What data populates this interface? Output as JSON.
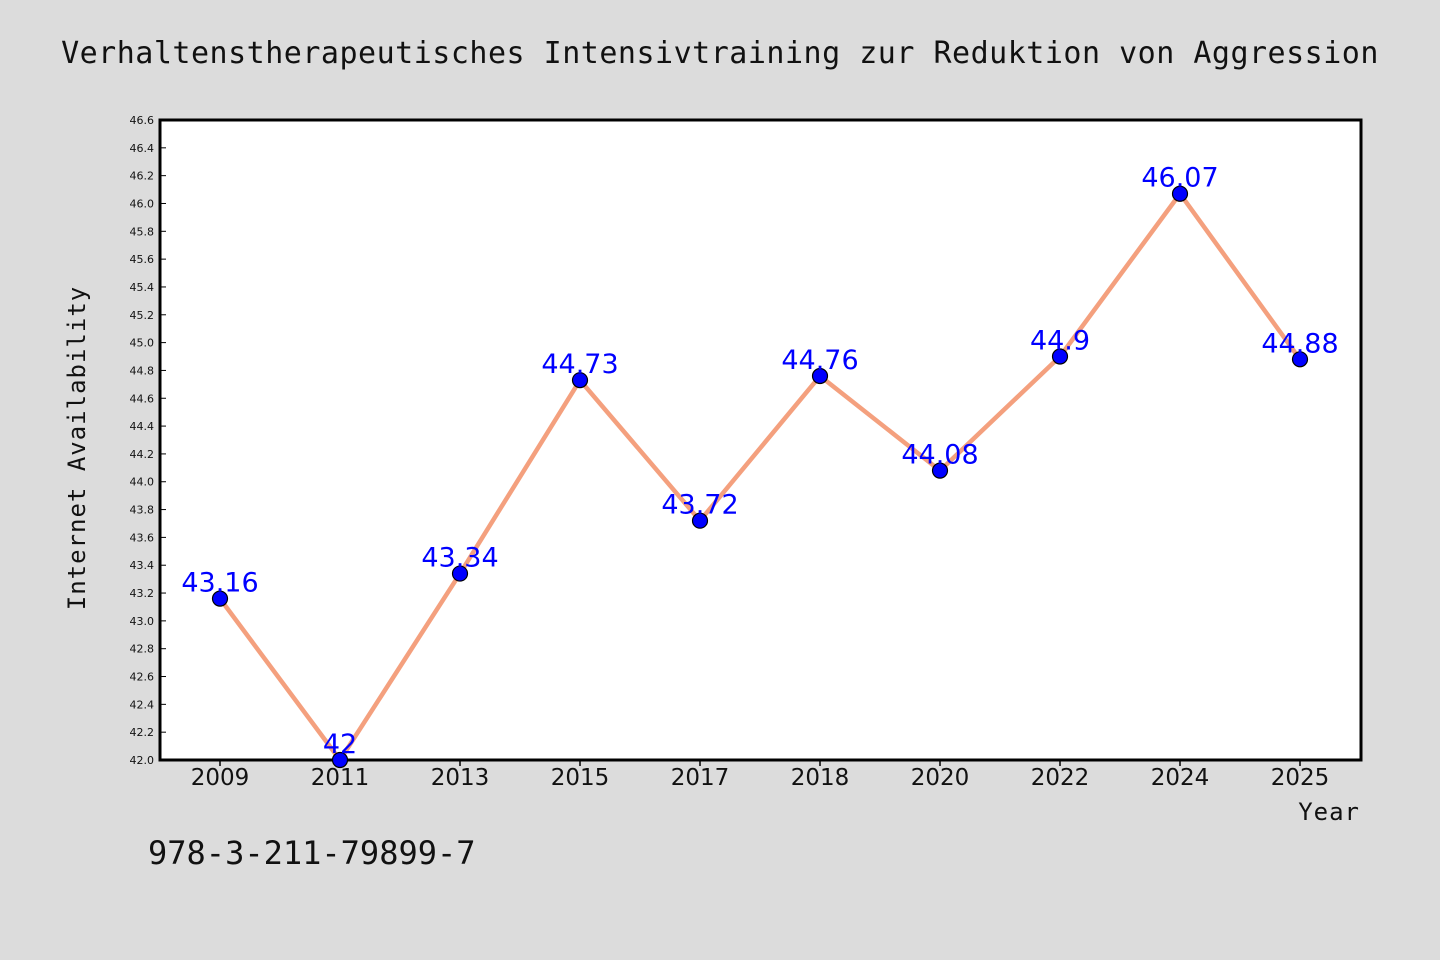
{
  "chart_data": {
    "type": "line",
    "title": "Verhaltenstherapeutisches Intensivtraining zur Reduktion von Aggression",
    "xlabel": "Year",
    "ylabel": "Internet Availability",
    "categories": [
      "2009",
      "2011",
      "2013",
      "2015",
      "2017",
      "2018",
      "2020",
      "2022",
      "2024",
      "2025"
    ],
    "series": [
      {
        "values": [
          43.16,
          42,
          43.34,
          44.73,
          43.72,
          44.76,
          44.08,
          44.9,
          46.07,
          44.88
        ],
        "line_color": "#f4a07e",
        "marker_color": "#0000ff"
      }
    ],
    "data_labels": [
      "43.16",
      "42",
      "43.34",
      "44.73",
      "43.72",
      "44.76",
      "44.08",
      "44.9",
      "46.07",
      "44.88"
    ],
    "ylim": [
      42.0,
      46.6
    ],
    "yticks": [
      "42.0",
      "42.2",
      "42.4",
      "42.6",
      "42.8",
      "43.0",
      "43.2",
      "43.4",
      "43.6",
      "43.8",
      "44.0",
      "44.2",
      "44.4",
      "44.6",
      "44.8",
      "45.0",
      "45.2",
      "45.4",
      "45.6",
      "45.8",
      "46.0",
      "46.2",
      "46.4",
      "46.6"
    ],
    "grid": false,
    "legend": "none",
    "label_color": "#0000ff",
    "plot_background": "#ffffff",
    "page_background": "#dcdcdc"
  },
  "footer": {
    "isbn": "978-3-211-79899-7"
  }
}
